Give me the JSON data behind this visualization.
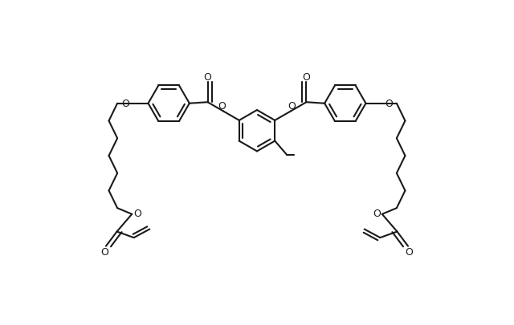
{
  "bg_color": "#ffffff",
  "line_color": "#1a1a1a",
  "line_width": 1.5,
  "figsize": [
    6.4,
    4.06
  ],
  "dpi": 100,
  "xlim": [
    -10.5,
    10.5
  ],
  "ylim": [
    -5.5,
    4.5
  ]
}
